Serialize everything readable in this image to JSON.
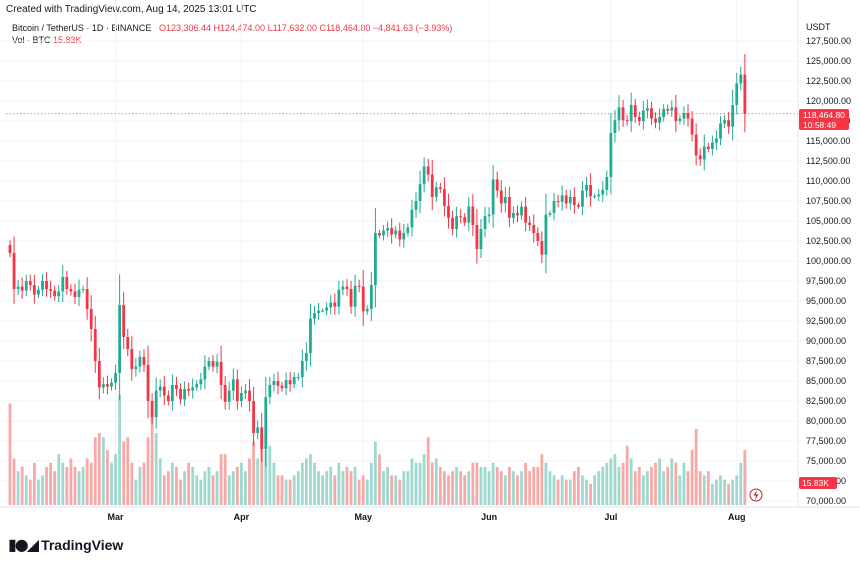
{
  "caption": "Created with TradingView.com, Aug 14, 2025 13:01 UTC",
  "legend": {
    "symbol": "Bitcoin / TetherUS · 1D · BINANCE",
    "open": "O123,306.44",
    "high": "H124,474.00",
    "low": "L117,632.00",
    "close": "C118,464.80",
    "change": "−4,841.63 (−3.93%)",
    "vol_label": "Vol · BTC",
    "vol_value": "15.83K"
  },
  "axis_unit": "USDT",
  "last_price": "118,464.80",
  "countdown": "10:58:49",
  "last_volume": "15.83K",
  "brand": "TradingView",
  "colors": {
    "up": "#22ab94",
    "down": "#f23645",
    "vol_up": "#9fd8cf",
    "vol_down": "#f7a9a7"
  },
  "chart_data": {
    "type": "candlestick",
    "ylim": [
      70000,
      127500
    ],
    "y_ticks": [
      "127,500.00",
      "125,000.00",
      "122,500.00",
      "120,000.00",
      "117,500.00",
      "115,000.00",
      "112,500.00",
      "110,000.00",
      "107,500.00",
      "105,000.00",
      "102,500.00",
      "100,000.00",
      "97,500.00",
      "95,000.00",
      "92,500.00",
      "90,000.00",
      "87,500.00",
      "85,000.00",
      "82,500.00",
      "80,000.00",
      "77,500.00",
      "75,000.00",
      "72,500.00",
      "70,000.00"
    ],
    "x_ticks": [
      {
        "label": "Mar",
        "index": 26
      },
      {
        "label": "Apr",
        "index": 57
      },
      {
        "label": "May",
        "index": 87
      },
      {
        "label": "Jun",
        "index": 118
      },
      {
        "label": "Jul",
        "index": 148
      },
      {
        "label": "Aug",
        "index": 179
      }
    ],
    "closes": [
      101000,
      96500,
      96800,
      96300,
      97500,
      97000,
      95800,
      96400,
      97500,
      96500,
      96300,
      95600,
      96200,
      98000,
      96500,
      96200,
      95500,
      96400,
      96500,
      94000,
      91500,
      87500,
      84200,
      84600,
      84300,
      84800,
      86000,
      94500,
      90500,
      89000,
      86500,
      86800,
      88000,
      87000,
      82500,
      80500,
      83800,
      84300,
      83200,
      82500,
      84500,
      84000,
      82700,
      84000,
      83800,
      84200,
      84600,
      85200,
      86800,
      87500,
      86800,
      87400,
      84500,
      82400,
      83800,
      85200,
      82500,
      83500,
      83800,
      82500,
      78500,
      79200,
      76500,
      83000,
      84500,
      85000,
      84400,
      84100,
      85100,
      84600,
      85500,
      85500,
      87500,
      88500,
      92800,
      93500,
      93800,
      93800,
      94200,
      94800,
      94300,
      96400,
      96800,
      96500,
      94300,
      96900,
      96800,
      93700,
      94000,
      97000,
      103500,
      103200,
      103800,
      104100,
      103300,
      103800,
      102700,
      103500,
      104200,
      106400,
      107500,
      109600,
      111800,
      110800,
      108000,
      109200,
      109000,
      106900,
      105400,
      104000,
      105600,
      105500,
      104800,
      106800,
      104500,
      101500,
      104000,
      105600,
      105800,
      110200,
      108800,
      107200,
      108000,
      105400,
      106000,
      105700,
      106800,
      104800,
      104500,
      103500,
      102500,
      100800,
      105800,
      106000,
      107500,
      107400,
      108200,
      107200,
      108000,
      107000,
      106800,
      108800,
      109500,
      108100,
      108100,
      108300,
      108900,
      110500,
      116000,
      117600,
      119200,
      117600,
      117500,
      119500,
      118000,
      117500,
      118800,
      119100,
      117800,
      117300,
      118000,
      119000,
      118800,
      119200,
      117500,
      117800,
      118500,
      117800,
      115800,
      113200,
      112700,
      114300,
      114000,
      114800,
      115300,
      117200,
      117600,
      116800,
      119500,
      122200,
      123300,
      118400
    ],
    "volumes": [
      2.4,
      1.1,
      0.8,
      0.9,
      0.7,
      0.6,
      1.0,
      0.6,
      0.7,
      0.9,
      1.0,
      0.8,
      1.2,
      1.0,
      0.9,
      1.1,
      0.9,
      0.8,
      0.9,
      1.1,
      1.0,
      1.6,
      1.7,
      1.6,
      1.3,
      1.0,
      1.2,
      2.6,
      1.5,
      1.6,
      1.0,
      0.6,
      0.9,
      1.0,
      1.6,
      2.2,
      1.7,
      1.1,
      0.7,
      0.8,
      1.0,
      0.9,
      0.6,
      0.8,
      1.0,
      0.9,
      0.7,
      0.6,
      0.8,
      0.9,
      0.7,
      0.8,
      1.2,
      1.2,
      0.7,
      0.8,
      0.9,
      1.0,
      0.8,
      1.1,
      1.5,
      1.1,
      1.7,
      1.3,
      1.4,
      1.0,
      0.7,
      0.7,
      0.6,
      0.6,
      0.7,
      0.8,
      1.0,
      1.1,
      1.2,
      1.0,
      0.8,
      0.7,
      0.8,
      0.9,
      0.7,
      1.0,
      0.8,
      0.9,
      0.8,
      0.9,
      0.6,
      0.7,
      0.6,
      1.0,
      1.5,
      1.2,
      0.8,
      0.9,
      0.7,
      0.7,
      0.6,
      0.8,
      0.8,
      1.1,
      1.0,
      1.0,
      1.2,
      1.6,
      1.0,
      1.1,
      0.9,
      0.8,
      0.7,
      0.8,
      0.9,
      0.8,
      0.7,
      0.8,
      1.0,
      1.0,
      0.9,
      0.9,
      0.8,
      1.0,
      0.9,
      0.8,
      0.7,
      0.9,
      0.8,
      0.7,
      0.8,
      1.0,
      0.8,
      0.9,
      0.9,
      1.2,
      1.0,
      0.8,
      0.7,
      0.6,
      0.7,
      0.6,
      0.6,
      0.8,
      0.9,
      0.7,
      0.6,
      0.5,
      0.7,
      0.8,
      0.9,
      1.0,
      1.1,
      1.2,
      0.9,
      1.0,
      1.4,
      1.1,
      0.8,
      0.9,
      0.7,
      0.8,
      0.9,
      1.0,
      1.1,
      0.8,
      0.9,
      1.1,
      1.0,
      0.7,
      1.0,
      0.8,
      1.3,
      1.8,
      0.8,
      0.7,
      0.8,
      0.5,
      0.6,
      0.7,
      0.6,
      0.5,
      0.6,
      0.7,
      1.0,
      1.3,
      1.5,
      1.0
    ]
  }
}
